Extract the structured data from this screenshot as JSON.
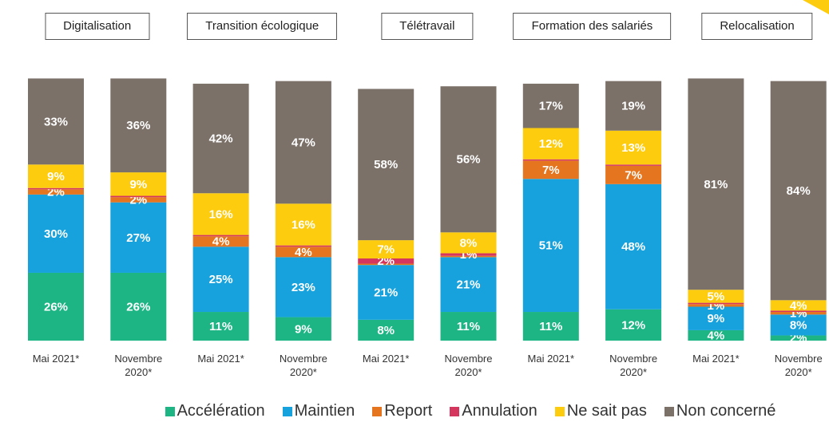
{
  "chart_data": {
    "type": "stacked_bar",
    "groups": [
      "Digitalisation",
      "Transition écologique",
      "Télétravail",
      "Formation des salariés",
      "Relocalisation"
    ],
    "categories": [
      "Mai 2021*",
      "Novembre 2020*",
      "Mai 2021*",
      "Novembre 2020*",
      "Mai 2021*",
      "Novembre 2020*",
      "Mai 2021*",
      "Novembre 2020*",
      "Mai 2021*",
      "Novembre 2020*"
    ],
    "ylim": [
      0,
      100
    ],
    "series": [
      {
        "name": "Accélération",
        "color": "#1db584",
        "values": [
          26,
          26,
          11,
          9,
          8,
          11,
          11,
          12,
          4,
          2
        ],
        "value_labels": [
          "26%",
          "26%",
          "11%",
          "9%",
          "8%",
          "11%",
          "11%",
          "12%",
          "4%",
          "2%"
        ]
      },
      {
        "name": "Maintien",
        "color": "#17a2dd",
        "values": [
          30,
          27,
          25,
          23,
          21,
          21,
          51,
          48,
          9,
          8
        ],
        "value_labels": [
          "30%",
          "27%",
          "25%",
          "23%",
          "21%",
          "21%",
          "51%",
          "48%",
          "9%",
          "8%"
        ]
      },
      {
        "name": "Report",
        "color": "#e5751f",
        "values": [
          2,
          2,
          4,
          4,
          0.5,
          0.5,
          7,
          7,
          1,
          1
        ],
        "value_labels": [
          "2%",
          "2%",
          "4%",
          "4%",
          null,
          null,
          "7%",
          "7%",
          "1%",
          "1%"
        ]
      },
      {
        "name": "Annulation",
        "color": "#d4365e",
        "values": [
          0.5,
          0.5,
          0.5,
          0.5,
          2,
          1,
          0.5,
          0.5,
          0.5,
          0.5
        ],
        "value_labels": [
          null,
          null,
          null,
          null,
          "2%",
          "1%",
          null,
          null,
          null,
          null
        ]
      },
      {
        "name": "Ne sait pas",
        "color": "#fdcc0e",
        "values": [
          9,
          9,
          16,
          16,
          7,
          8,
          12,
          13,
          5,
          4
        ],
        "value_labels": [
          "9%",
          "9%",
          "16%",
          "16%",
          "7%",
          "8%",
          "12%",
          "13%",
          "5%",
          "4%"
        ]
      },
      {
        "name": "Non concerné",
        "color": "#7c7169",
        "values": [
          33,
          36,
          42,
          47,
          58,
          56,
          17,
          19,
          81,
          84
        ],
        "value_labels": [
          "33%",
          "36%",
          "42%",
          "47%",
          "58%",
          "56%",
          "17%",
          "19%",
          "81%",
          "84%"
        ]
      }
    ]
  }
}
